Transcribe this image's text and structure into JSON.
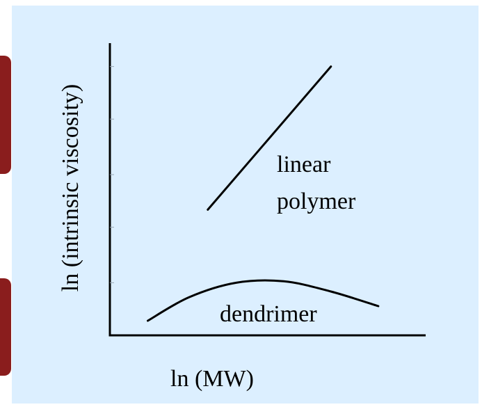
{
  "colors": {
    "panel_bg": "#dcefff",
    "ink": "#000000",
    "edge_accent": "#8a1d1d"
  },
  "chart_data": {
    "type": "line",
    "title": "",
    "xlabel": "ln (MW)",
    "ylabel": "ln (intrinsic viscosity)",
    "xlim": [
      0,
      100
    ],
    "ylim": [
      0,
      100
    ],
    "grid": false,
    "y_ticks": [
      18,
      37,
      55,
      74,
      92
    ],
    "series": [
      {
        "name": "linear polymer",
        "label_lines": [
          "linear",
          "polymer"
        ],
        "x": [
          31,
          70
        ],
        "y": [
          43,
          92
        ]
      },
      {
        "name": "dendrimer",
        "label_lines": [
          "dendrimer"
        ],
        "x": [
          12,
          25,
          40,
          55,
          70,
          85
        ],
        "y": [
          5,
          13,
          18,
          18.5,
          15,
          10
        ]
      }
    ]
  }
}
